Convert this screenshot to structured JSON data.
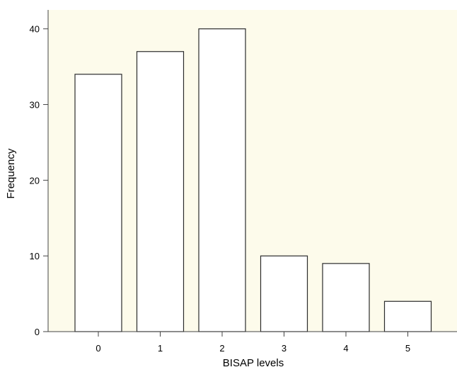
{
  "chart_data": {
    "type": "bar",
    "title": "",
    "xlabel": "BISAP levels",
    "ylabel": "Frequency",
    "categories": [
      "0",
      "1",
      "2",
      "3",
      "4",
      "5"
    ],
    "values": [
      34,
      37,
      40,
      10,
      9,
      4
    ],
    "yticks": [
      0,
      10,
      20,
      30,
      40
    ],
    "ylim": [
      0,
      42.5
    ],
    "grid": false,
    "legend": "none",
    "colors": {
      "plot_background": "#fdfbeb",
      "bar_fill": "#ffffff",
      "bar_stroke": "#2b2b2b",
      "axis": "#444444"
    }
  }
}
